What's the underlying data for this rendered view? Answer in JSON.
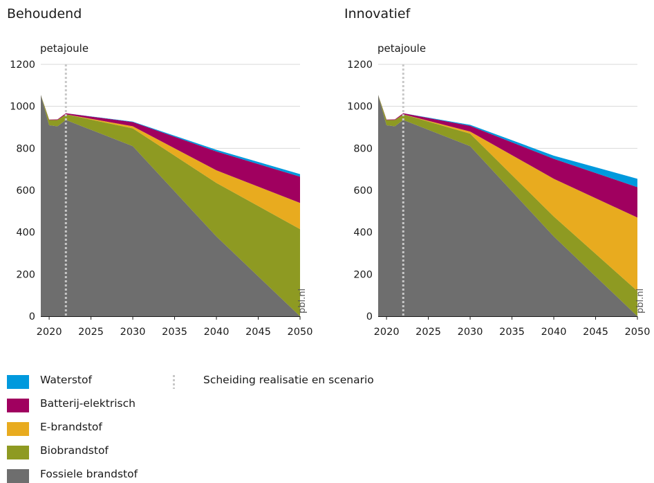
{
  "panels": {
    "left_title": "Behoudend",
    "right_title": "Innovatief",
    "unit": "petajoule",
    "source": "pbl.nl"
  },
  "legend": {
    "items": [
      {
        "label": "Waterstof",
        "color": "#0099dd"
      },
      {
        "label": "Batterij-elektrisch",
        "color": "#a0005f"
      },
      {
        "label": "E-brandstof",
        "color": "#e8ab1f"
      },
      {
        "label": "Biobrandstof",
        "color": "#8e9a22"
      },
      {
        "label": "Fossiele brandstof",
        "color": "#6e6e6e"
      }
    ],
    "separator_label": "Scheiding realisatie en scenario"
  },
  "chart_data": [
    {
      "type": "area",
      "stacked": true,
      "title": "Behoudend",
      "ylabel": "petajoule",
      "ylim": [
        0,
        1200
      ],
      "xlim": [
        2019,
        2050
      ],
      "xticks": [
        2020,
        2025,
        2030,
        2035,
        2040,
        2045,
        2050
      ],
      "yticks": [
        0,
        200,
        400,
        600,
        800,
        1000,
        1200
      ],
      "grid": true,
      "separator_year": 2022,
      "x": [
        2019,
        2020,
        2021,
        2022,
        2030,
        2040,
        2050
      ],
      "series": [
        {
          "name": "Fossiele brandstof",
          "values": [
            1055,
            910,
            905,
            935,
            810,
            380,
            0
          ]
        },
        {
          "name": "Biobrandstof",
          "values": [
            0,
            25,
            30,
            27,
            85,
            255,
            415
          ]
        },
        {
          "name": "E-brandstof",
          "values": [
            0,
            0,
            0,
            0,
            10,
            60,
            125
          ]
        },
        {
          "name": "Batterij-elektrisch",
          "values": [
            0,
            2,
            3,
            5,
            20,
            90,
            125
          ]
        },
        {
          "name": "Waterstof",
          "values": [
            0,
            0,
            0,
            0,
            2,
            8,
            12
          ]
        }
      ]
    },
    {
      "type": "area",
      "stacked": true,
      "title": "Innovatief",
      "ylabel": "petajoule",
      "ylim": [
        0,
        1200
      ],
      "xlim": [
        2019,
        2050
      ],
      "xticks": [
        2020,
        2025,
        2030,
        2035,
        2040,
        2045,
        2050
      ],
      "yticks": [
        0,
        200,
        400,
        600,
        800,
        1000,
        1200
      ],
      "grid": true,
      "separator_year": 2022,
      "x": [
        2019,
        2020,
        2021,
        2022,
        2030,
        2040,
        2050
      ],
      "series": [
        {
          "name": "Fossiele brandstof",
          "values": [
            1055,
            910,
            905,
            935,
            810,
            380,
            0
          ]
        },
        {
          "name": "Biobrandstof",
          "values": [
            0,
            25,
            30,
            27,
            60,
            95,
            120
          ]
        },
        {
          "name": "E-brandstof",
          "values": [
            0,
            0,
            0,
            0,
            10,
            180,
            350
          ]
        },
        {
          "name": "Batterij-elektrisch",
          "values": [
            0,
            2,
            3,
            5,
            27,
            95,
            145
          ]
        },
        {
          "name": "Waterstof",
          "values": [
            0,
            0,
            0,
            0,
            5,
            15,
            40
          ]
        }
      ]
    }
  ]
}
